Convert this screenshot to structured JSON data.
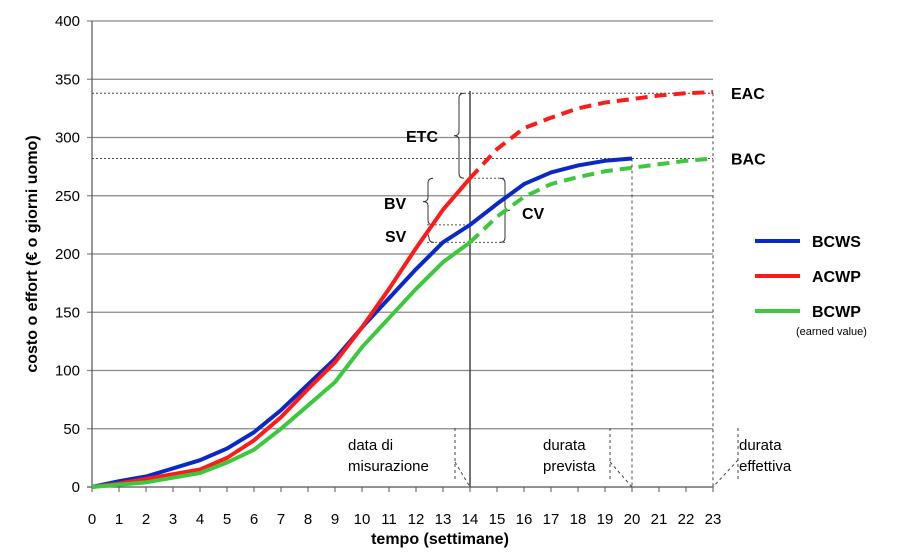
{
  "chart_data": {
    "type": "line",
    "xlabel": "tempo (settimane)",
    "ylabel": "costo o effort  (€ o giorni uomo)",
    "xlim": [
      0,
      23
    ],
    "ylim": [
      0,
      400
    ],
    "x_ticks": [
      "0",
      "1",
      "2",
      "3",
      "4",
      "5",
      "6",
      "7",
      "8",
      "9",
      "10",
      "11",
      "12",
      "13",
      "14",
      "15",
      "16",
      "17",
      "18",
      "19",
      "20",
      "21",
      "22",
      "23"
    ],
    "y_ticks": [
      "0",
      "50",
      "100",
      "150",
      "200",
      "250",
      "300",
      "350",
      "400"
    ],
    "y_tick_values": [
      0,
      50,
      100,
      150,
      200,
      250,
      300,
      350,
      400
    ],
    "grid": "horizontal",
    "legend_position": "right",
    "series": [
      {
        "name": "BCWS",
        "color": "#0a28c8",
        "x": [
          0,
          1,
          2,
          3,
          4,
          5,
          6,
          7,
          8,
          9,
          10,
          11,
          12,
          13,
          14,
          15,
          16,
          17,
          18,
          19,
          20
        ],
        "values": [
          0,
          5,
          9,
          16,
          23,
          33,
          47,
          66,
          88,
          110,
          137,
          162,
          187,
          210,
          225,
          243,
          260,
          270,
          276,
          280,
          282
        ],
        "dashed_from": null
      },
      {
        "name": "ACWP",
        "color": "#ff1a1a",
        "x": [
          0,
          1,
          2,
          3,
          4,
          5,
          6,
          7,
          8,
          9,
          10,
          11,
          12,
          13,
          14,
          15,
          16,
          17,
          18,
          19,
          20,
          21,
          22,
          23
        ],
        "values": [
          0,
          3,
          7,
          11,
          15,
          25,
          40,
          60,
          84,
          107,
          137,
          170,
          205,
          238,
          265,
          290,
          308,
          317,
          325,
          330,
          333,
          336,
          338,
          339
        ],
        "dashed_from": 14
      },
      {
        "name": "BCWP",
        "sublabel": "(earned value)",
        "color": "#3cc83c",
        "x": [
          0,
          1,
          2,
          3,
          4,
          5,
          6,
          7,
          8,
          9,
          10,
          11,
          12,
          13,
          14,
          15,
          16,
          17,
          18,
          19,
          20,
          21,
          22,
          23
        ],
        "values": [
          0,
          2,
          4,
          8,
          12,
          21,
          32,
          50,
          70,
          90,
          120,
          145,
          170,
          193,
          210,
          232,
          249,
          260,
          266,
          271,
          274,
          277,
          280,
          282
        ],
        "dashed_from": 14
      }
    ],
    "reference_lines": [
      {
        "label": "EAC",
        "value": 338
      },
      {
        "label": "BAC",
        "value": 282
      }
    ],
    "vertical_markers": [
      {
        "x": 14,
        "label_lines": [
          "data di",
          "misurazione"
        ],
        "style": "solid"
      },
      {
        "x": 20,
        "label_lines": [
          "durata",
          "prevista"
        ],
        "style": "dashed"
      },
      {
        "x": 23,
        "label_lines": [
          "durata",
          "effettiva"
        ],
        "style": "dashed"
      }
    ],
    "annotations": {
      "etc": "ETC",
      "bv": "BV",
      "sv": "SV",
      "cv": "CV"
    }
  }
}
